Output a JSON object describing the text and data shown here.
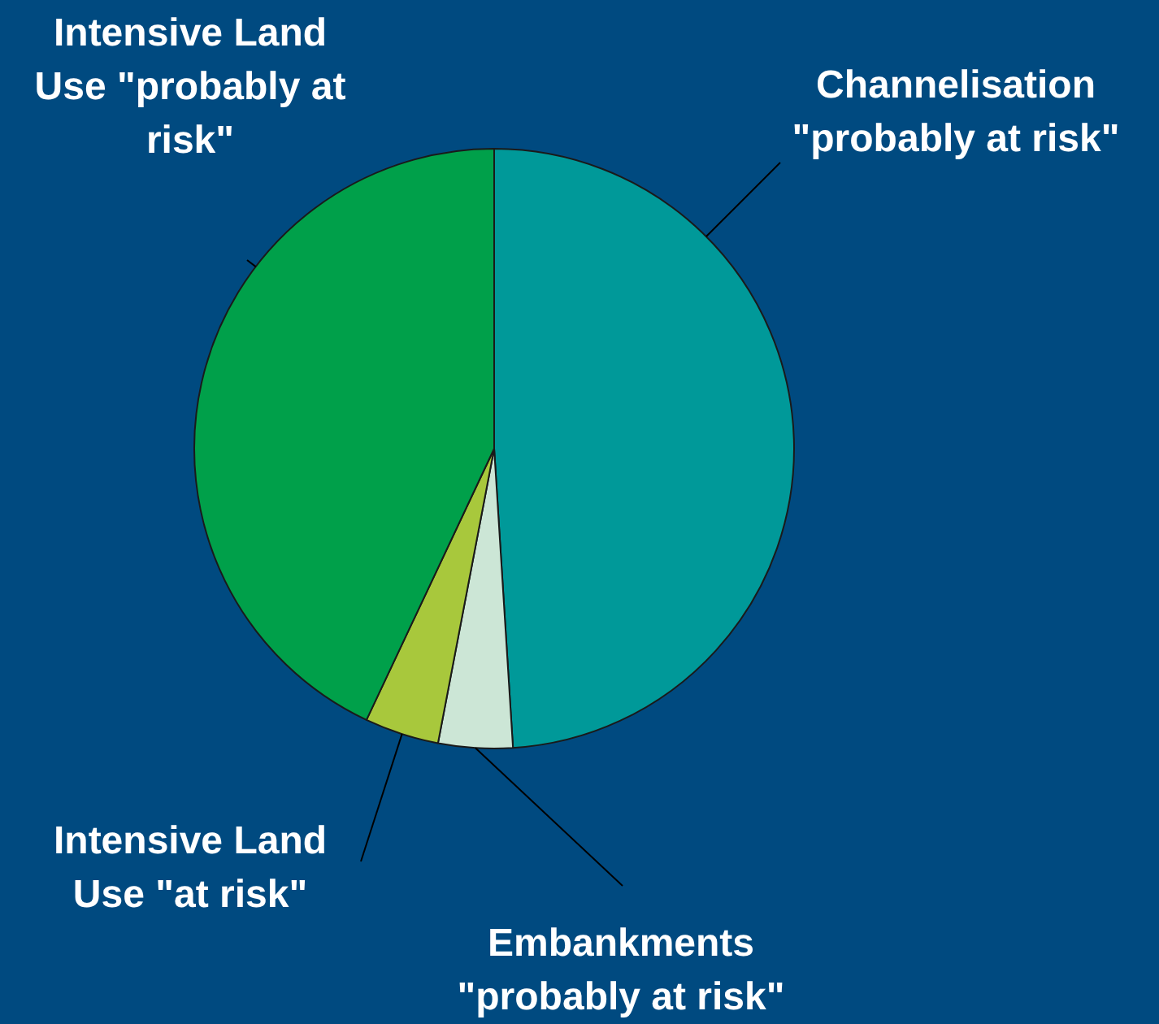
{
  "chart_data": {
    "type": "pie",
    "categories": [
      "Channelisation \"probably at risk\"",
      "Embankments \"probably at risk\"",
      "Intensive Land Use \"at risk\"",
      "Intensive Land Use \"probably at risk\""
    ],
    "values": [
      49,
      4,
      4,
      43
    ],
    "colors": [
      "#009999",
      "#cce6d6",
      "#a8c83c",
      "#00a04a"
    ],
    "legend": false
  }
}
